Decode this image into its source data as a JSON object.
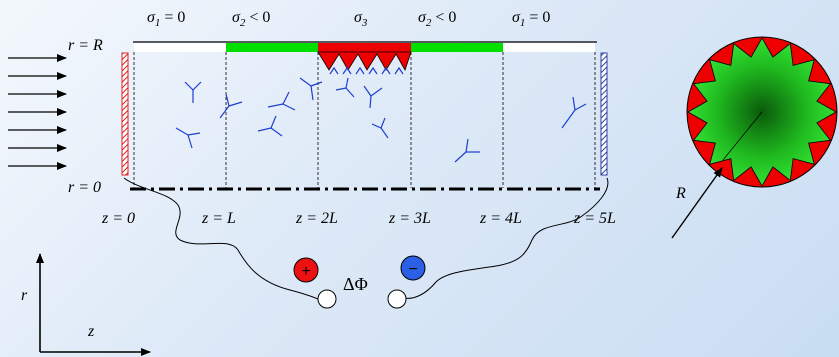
{
  "sigma_labels": [
    {
      "sym": "σ",
      "sub": "1",
      "rel": " = 0"
    },
    {
      "sym": "σ",
      "sub": "2",
      "rel": " < 0"
    },
    {
      "sym": "σ",
      "sub": "3",
      "rel": ""
    },
    {
      "sym": "σ",
      "sub": "2",
      "rel": " < 0"
    },
    {
      "sym": "σ",
      "sub": "1",
      "rel": " = 0"
    }
  ],
  "radius_labels": {
    "top": "r = R",
    "bottom": "r = 0"
  },
  "z_labels": [
    "z = 0",
    "z = L",
    "z = 2L",
    "z = 3L",
    "z = 4L",
    "z = 5L"
  ],
  "potential_label": "ΔΦ",
  "electrodes": {
    "positive": "+",
    "negative": "−"
  },
  "axes": {
    "vertical": "r",
    "horizontal": "z"
  },
  "cross_section_label": "R",
  "colors": {
    "charge_negative": "#00e000",
    "charge_positive": "#ee0000",
    "molecule": "#1f3fcf",
    "electrode_positive": "#ee1111",
    "electrode_negative": "#2a5fe6"
  },
  "icons": [
    "arrow-icon",
    "polymer-icon",
    "electrode-icon"
  ]
}
